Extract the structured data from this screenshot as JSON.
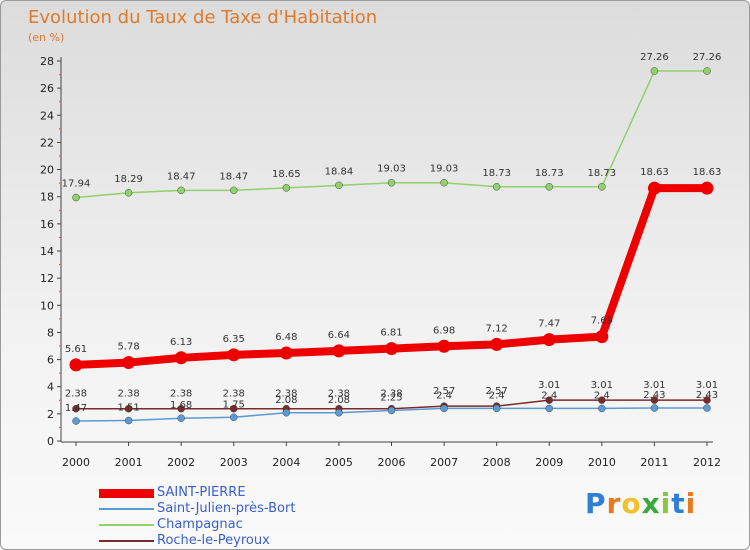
{
  "header": {
    "title": "Evolution du Taux de Taxe d'Habitation",
    "subtitle": "(en %)"
  },
  "brand": {
    "letters": [
      "P",
      "r",
      "o",
      "x",
      "i",
      "t",
      "i"
    ],
    "colors": [
      "#2e7fd6",
      "#e87a1e",
      "#f2c02a",
      "#3aa83a",
      "#8cc63e",
      "#2e7fd6",
      "#e87a1e"
    ]
  },
  "chart_data": {
    "type": "line",
    "title": "Evolution du Taux de Taxe d'Habitation",
    "ylabel": "(en %)",
    "xlabel": "",
    "x": [
      2000,
      2001,
      2002,
      2003,
      2004,
      2005,
      2006,
      2007,
      2008,
      2009,
      2010,
      2011,
      2012
    ],
    "ylim": [
      0,
      28
    ],
    "yticks": [
      0,
      2,
      4,
      6,
      8,
      10,
      12,
      14,
      16,
      18,
      20,
      22,
      24,
      26,
      28
    ],
    "grid": false,
    "legend": "bottom-left",
    "series": [
      {
        "name": "SAINT-PIERRE",
        "color": "#ee0000",
        "values": [
          5.61,
          5.78,
          6.13,
          6.35,
          6.48,
          6.64,
          6.81,
          6.98,
          7.12,
          7.47,
          7.69,
          18.63,
          18.63
        ],
        "labels": [
          "5.61",
          "5.78",
          "6.13",
          "6.35",
          "6.48",
          "6.64",
          "6.81",
          "6.98",
          "7.12",
          "7.47",
          "7.69",
          "18.63",
          "18.63"
        ]
      },
      {
        "name": "Saint-Julien-près-Bort",
        "color": "#5b9bd5",
        "values": [
          1.47,
          1.51,
          1.68,
          1.75,
          2.08,
          2.08,
          2.25,
          2.4,
          2.4,
          2.4,
          2.4,
          2.43,
          2.43
        ],
        "labels": [
          "1.47",
          "1.51",
          "1.68",
          "1.75",
          "2.08",
          "2.08",
          "2.25",
          "2.4",
          "2.4",
          "2.4",
          "2.4",
          "2.43",
          "2.43"
        ]
      },
      {
        "name": "Champagnac",
        "color": "#8fd16a",
        "values": [
          17.94,
          18.29,
          18.47,
          18.47,
          18.65,
          18.84,
          19.03,
          19.03,
          18.73,
          18.73,
          18.73,
          27.26,
          27.26
        ],
        "labels": [
          "17.94",
          "18.29",
          "18.47",
          "18.47",
          "18.65",
          "18.84",
          "19.03",
          "19.03",
          "18.73",
          "18.73",
          "18.73",
          "27.26",
          "27.26"
        ]
      },
      {
        "name": "Roche-le-Peyroux",
        "color": "#7a2a2a",
        "values": [
          2.38,
          2.38,
          2.38,
          2.38,
          2.38,
          2.38,
          2.38,
          2.57,
          2.57,
          3.01,
          3.01,
          3.01,
          3.01
        ],
        "labels": [
          "2.38",
          "2.38",
          "2.38",
          "2.38",
          "2.38",
          "2.38",
          "2.38",
          "2.57",
          "2.57",
          "3.01",
          "3.01",
          "3.01",
          "3.01"
        ]
      }
    ]
  }
}
